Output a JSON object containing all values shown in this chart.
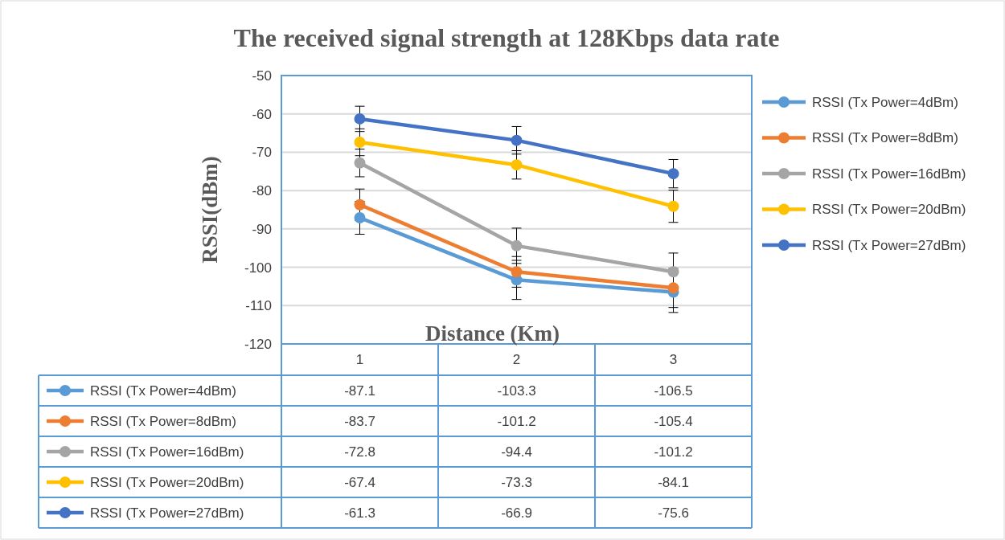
{
  "chart_data": {
    "type": "line",
    "title": "The received signal strength at 128Kbps data rate",
    "xlabel": "Distance (Km)",
    "ylabel": "RSSI(dBm)",
    "categories": [
      "1",
      "2",
      "3"
    ],
    "series": [
      {
        "name": "RSSI (Tx Power=4dBm)",
        "color": "#5b9bd5",
        "values": [
          -87.1,
          -103.3,
          -106.5
        ],
        "errors": [
          4.3,
          5.1,
          5.3
        ]
      },
      {
        "name": "RSSI (Tx Power=8dBm)",
        "color": "#ed7d31",
        "values": [
          -83.7,
          -101.2,
          -105.4
        ],
        "errors": [
          4.1,
          4,
          5.1
        ]
      },
      {
        "name": "RSSI (Tx Power=16dBm)",
        "color": "#a5a5a5",
        "values": [
          -72.8,
          -94.4,
          -101.2
        ],
        "errors": [
          3.6,
          4.6,
          4.9
        ]
      },
      {
        "name": "RSSI (Tx Power=20dBm)",
        "color": "#ffc000",
        "values": [
          -67.4,
          -73.3,
          -84.1
        ],
        "errors": [
          3.5,
          3.7,
          4.2
        ]
      },
      {
        "name": "RSSI (Tx Power=27dBm)",
        "color": "#4472c4",
        "values": [
          -61.3,
          -66.9,
          -75.6
        ],
        "errors": [
          3.3,
          3.6,
          3.7
        ]
      }
    ],
    "ylim": [
      -120,
      -50
    ],
    "yticks": [
      -120,
      -110,
      -100,
      -90,
      -80,
      -70,
      -60,
      -50
    ],
    "grid": "y",
    "legend": "right",
    "marker": "circle",
    "line_style": "solid",
    "data_labels": true
  }
}
